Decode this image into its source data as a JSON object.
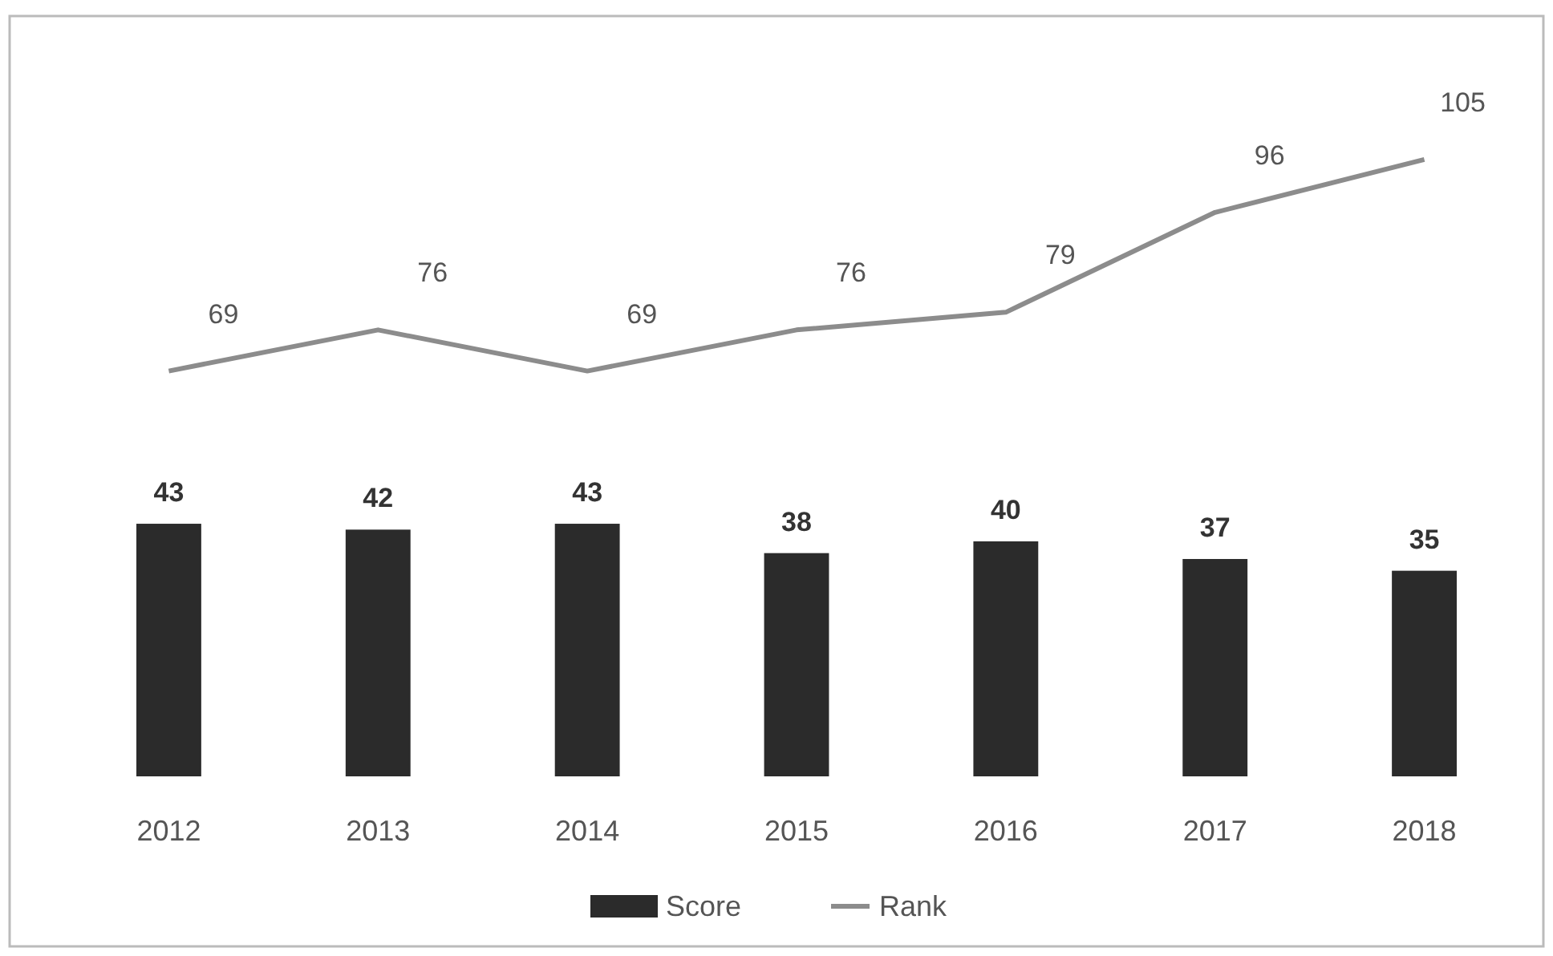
{
  "chart_data": {
    "type": "bar",
    "categories": [
      "2012",
      "2013",
      "2014",
      "2015",
      "2016",
      "2017",
      "2018"
    ],
    "series": [
      {
        "name": "Score",
        "color": "#2b2b2b",
        "values": [
          43,
          42,
          43,
          38,
          40,
          37,
          35
        ]
      },
      {
        "name": "Rank",
        "type": "line",
        "color": "#8c8c8c",
        "values": [
          69,
          76,
          69,
          76,
          79,
          96,
          105
        ]
      }
    ],
    "tick_labels": "x",
    "data_labels": true,
    "legend": "bottom",
    "grid": false
  }
}
